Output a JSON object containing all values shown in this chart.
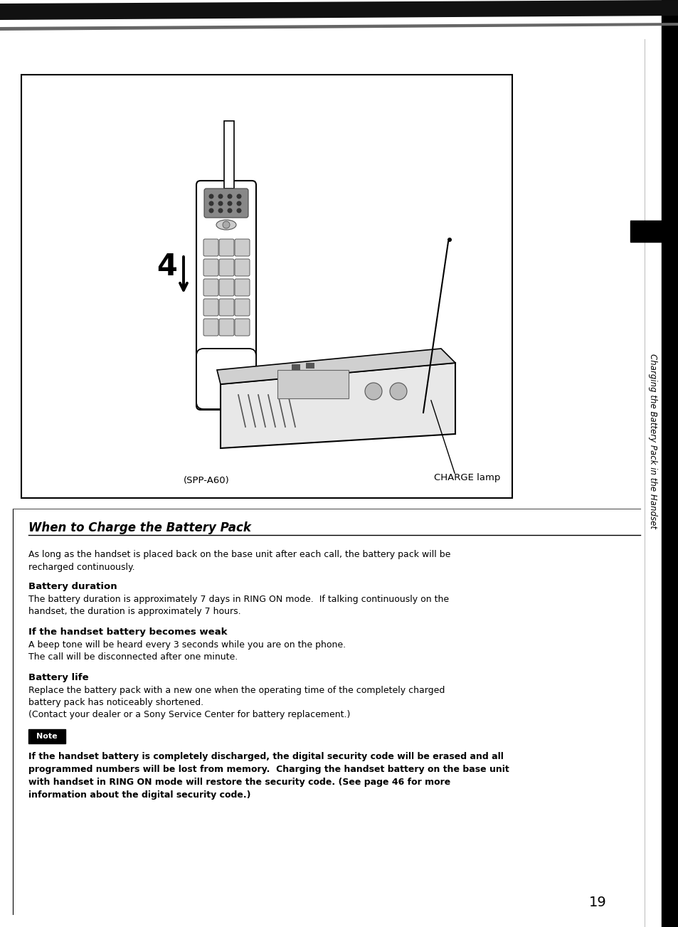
{
  "page_bg": "#ffffff",
  "page_number": "19",
  "section_title": "When to Charge the Battery Pack",
  "intro_text": "As long as the handset is placed back on the base unit after each call, the battery pack will be recharged continuously.",
  "battery_duration_title": "Battery duration",
  "battery_duration_text": "The battery duration is approximately 7 days in RING ON mode.  If talking continuously on the handset, the duration is approximately 7 hours.",
  "handset_weak_title": "If the handset battery becomes weak",
  "handset_weak_text": "A beep tone will be heard every 3 seconds while you are on the phone.\nThe call will be disconnected after one minute.",
  "battery_life_title": "Battery life",
  "battery_life_text": "Replace the battery pack with a new one when the operating time of the completely charged battery pack has noticeably shortened.\n(Contact your dealer or a Sony Service Center for battery replacement.)",
  "note_label": "Note",
  "note_text": "If the handset battery is completely discharged, the digital security code will be erased and all programmed numbers will be lost from memory.  Charging the handset battery on the base unit with handset in RING ON mode will restore the security code. (See page 46 for more information about the digital security code.)",
  "image_label_left": "(SPP-A60)",
  "image_label_right": "CHARGE lamp",
  "figure_number": "4",
  "sidebar_text": "Charging the Battery Pack in the Handset"
}
